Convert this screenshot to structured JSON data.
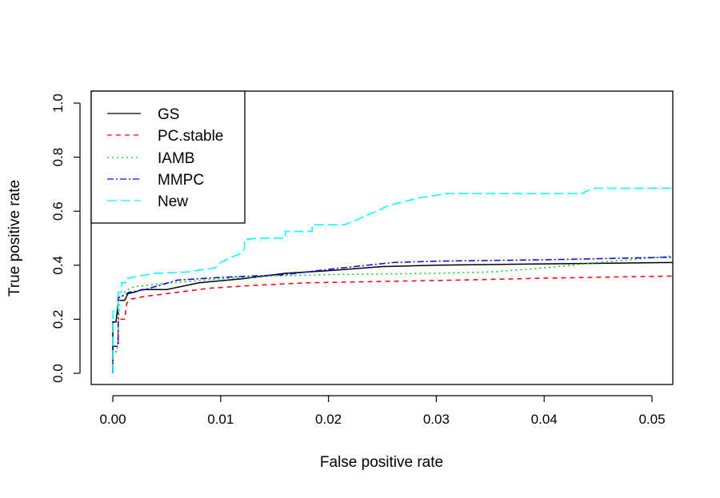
{
  "chart_data": {
    "type": "line",
    "title": "",
    "xlabel": "False positive rate",
    "ylabel": "True positive rate",
    "xlim": [
      0.0,
      0.052
    ],
    "ylim": [
      0.0,
      1.0
    ],
    "xticks": [
      "0.00",
      "0.01",
      "0.02",
      "0.03",
      "0.04",
      "0.05"
    ],
    "yticks": [
      "0.0",
      "0.2",
      "0.4",
      "0.6",
      "0.8",
      "1.0"
    ],
    "grid": false,
    "legend_position": "topleft",
    "series": [
      {
        "name": "GS",
        "color": "#000000",
        "dash": "",
        "x": [
          0.0,
          0.0,
          0.0003,
          0.0005,
          0.0005,
          0.0011,
          0.0014,
          0.002,
          0.0027,
          0.005,
          0.008,
          0.012,
          0.016,
          0.02,
          0.025,
          0.03,
          0.04,
          0.052
        ],
        "y": [
          0.0,
          0.19,
          0.19,
          0.26,
          0.27,
          0.27,
          0.295,
          0.3,
          0.31,
          0.31,
          0.335,
          0.35,
          0.37,
          0.38,
          0.395,
          0.4,
          0.405,
          0.41
        ]
      },
      {
        "name": "PC.stable",
        "color": "#ff0000",
        "dash": "6,5",
        "x": [
          0.0,
          0.0,
          0.0005,
          0.0005,
          0.0011,
          0.0013,
          0.0017,
          0.003,
          0.006,
          0.009,
          0.013,
          0.018,
          0.025,
          0.032,
          0.04,
          0.052
        ],
        "y": [
          0.0,
          0.1,
          0.1,
          0.2,
          0.2,
          0.26,
          0.275,
          0.285,
          0.3,
          0.315,
          0.325,
          0.335,
          0.34,
          0.345,
          0.352,
          0.36
        ]
      },
      {
        "name": "IAMB",
        "color": "#00cd00",
        "dash": "2,4",
        "x": [
          0.0,
          0.0,
          0.0004,
          0.0006,
          0.0006,
          0.0011,
          0.0014,
          0.002,
          0.004,
          0.007,
          0.01,
          0.015,
          0.02,
          0.03,
          0.035,
          0.04,
          0.045,
          0.052
        ],
        "y": [
          0.0,
          0.08,
          0.08,
          0.25,
          0.27,
          0.3,
          0.31,
          0.32,
          0.33,
          0.34,
          0.35,
          0.36,
          0.365,
          0.37,
          0.375,
          0.39,
          0.41,
          0.435
        ]
      },
      {
        "name": "MMPC",
        "color": "#0000ff",
        "dash": "8,3,2,3",
        "x": [
          0.0,
          0.0,
          0.0005,
          0.0005,
          0.0011,
          0.0015,
          0.003,
          0.006,
          0.01,
          0.016,
          0.02,
          0.026,
          0.03,
          0.04,
          0.052
        ],
        "y": [
          0.0,
          0.1,
          0.1,
          0.28,
          0.29,
          0.3,
          0.31,
          0.345,
          0.355,
          0.365,
          0.385,
          0.41,
          0.415,
          0.42,
          0.43
        ]
      },
      {
        "name": "New",
        "color": "#00ffff",
        "dash": "12,5",
        "x": [
          0.0,
          0.0,
          0.0005,
          0.0005,
          0.0008,
          0.0008,
          0.0012,
          0.0012,
          0.0025,
          0.004,
          0.007,
          0.0085,
          0.0095,
          0.01,
          0.011,
          0.0117,
          0.0122,
          0.0122,
          0.0135,
          0.016,
          0.016,
          0.0185,
          0.0185,
          0.0215,
          0.0225,
          0.0235,
          0.0245,
          0.0255,
          0.027,
          0.0285,
          0.031,
          0.035,
          0.0435,
          0.0445,
          0.052
        ],
        "y": [
          0.0,
          0.23,
          0.23,
          0.3,
          0.3,
          0.335,
          0.335,
          0.35,
          0.36,
          0.37,
          0.375,
          0.385,
          0.39,
          0.41,
          0.43,
          0.44,
          0.46,
          0.495,
          0.5,
          0.5,
          0.525,
          0.525,
          0.55,
          0.55,
          0.565,
          0.585,
          0.6,
          0.62,
          0.635,
          0.65,
          0.665,
          0.665,
          0.665,
          0.685,
          0.685
        ]
      }
    ]
  }
}
